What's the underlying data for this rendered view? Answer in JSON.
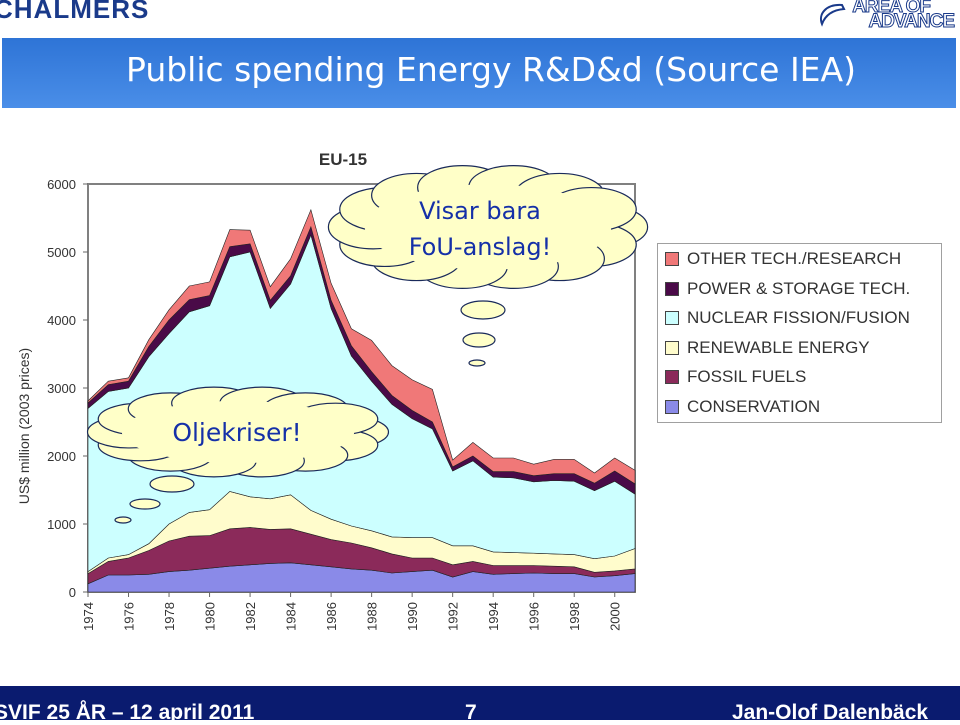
{
  "header": {
    "left_logo": "CHALMERS",
    "right_logo_line1": "AREA OF",
    "right_logo_line2": "ADVANCE"
  },
  "slide": {
    "title": "Public spending Energy R&D&d (Source IEA)"
  },
  "footer": {
    "left": "SVIF 25 ÅR – 12 april 2011",
    "page": "7",
    "right": "Jan-Olof Dalenbäck"
  },
  "callouts": {
    "top_line1": "Visar bara",
    "top_line2": "FoU-anslag!",
    "left": "Oljekriser!"
  },
  "chart_data": {
    "type": "area",
    "title": "EU-15",
    "xlabel": "",
    "ylabel": "US$ million (2003 prices)",
    "ylim": [
      0,
      6000
    ],
    "yticks": [
      "0",
      "1000",
      "2000",
      "3000",
      "4000",
      "5000",
      "6000"
    ],
    "xtick_labels": [
      "1974",
      "1976",
      "1978",
      "1980",
      "1982",
      "1984",
      "1986",
      "1988",
      "1990",
      "1992",
      "1994",
      "1996",
      "1998",
      "2000"
    ],
    "x": [
      1974,
      1975,
      1976,
      1977,
      1978,
      1979,
      1980,
      1981,
      1982,
      1983,
      1984,
      1985,
      1986,
      1987,
      1988,
      1989,
      1990,
      1991,
      1992,
      1993,
      1994,
      1995,
      1996,
      1997,
      1998,
      1999,
      2000,
      2001
    ],
    "stacked": true,
    "grid": false,
    "legend_position": "right",
    "series": [
      {
        "name": "CONSERVATION",
        "color": "#8a8ae8",
        "values": [
          120,
          250,
          250,
          260,
          300,
          320,
          350,
          380,
          400,
          420,
          430,
          400,
          370,
          340,
          320,
          280,
          300,
          320,
          220,
          300,
          260,
          270,
          280,
          270,
          270,
          220,
          240,
          270
        ]
      },
      {
        "name": "FOSSIL FUELS",
        "color": "#8b2a5a",
        "values": [
          150,
          200,
          250,
          350,
          450,
          500,
          480,
          550,
          550,
          500,
          500,
          450,
          400,
          380,
          330,
          280,
          200,
          180,
          180,
          150,
          130,
          120,
          110,
          110,
          100,
          70,
          70,
          70
        ]
      },
      {
        "name": "RENEWABLE ENERGY",
        "color": "#fffccc",
        "values": [
          30,
          50,
          50,
          100,
          250,
          350,
          380,
          550,
          450,
          450,
          500,
          350,
          300,
          250,
          250,
          250,
          300,
          300,
          280,
          230,
          200,
          190,
          180,
          180,
          180,
          200,
          220,
          300
        ]
      },
      {
        "name": "NUCLEAR FISSION/FUSION",
        "color": "#ccffff",
        "values": [
          2400,
          2450,
          2450,
          2750,
          2800,
          2950,
          3000,
          3450,
          3600,
          2800,
          3100,
          4050,
          3100,
          2500,
          2200,
          1950,
          1750,
          1600,
          1100,
          1250,
          1100,
          1100,
          1050,
          1080,
          1080,
          1000,
          1100,
          800
        ]
      },
      {
        "name": "POWER & STORAGE TECH.",
        "color": "#4a0a48",
        "values": [
          80,
          100,
          100,
          150,
          200,
          180,
          150,
          150,
          120,
          120,
          120,
          120,
          120,
          150,
          140,
          130,
          120,
          100,
          60,
          70,
          80,
          90,
          90,
          100,
          110,
          110,
          150,
          150
        ]
      },
      {
        "name": "OTHER TECH./RESEARCH",
        "color": "#f07878",
        "values": [
          30,
          50,
          50,
          100,
          150,
          200,
          200,
          250,
          200,
          200,
          250,
          250,
          250,
          250,
          460,
          440,
          450,
          480,
          100,
          200,
          200,
          200,
          170,
          210,
          210,
          150,
          190,
          200
        ]
      }
    ]
  }
}
